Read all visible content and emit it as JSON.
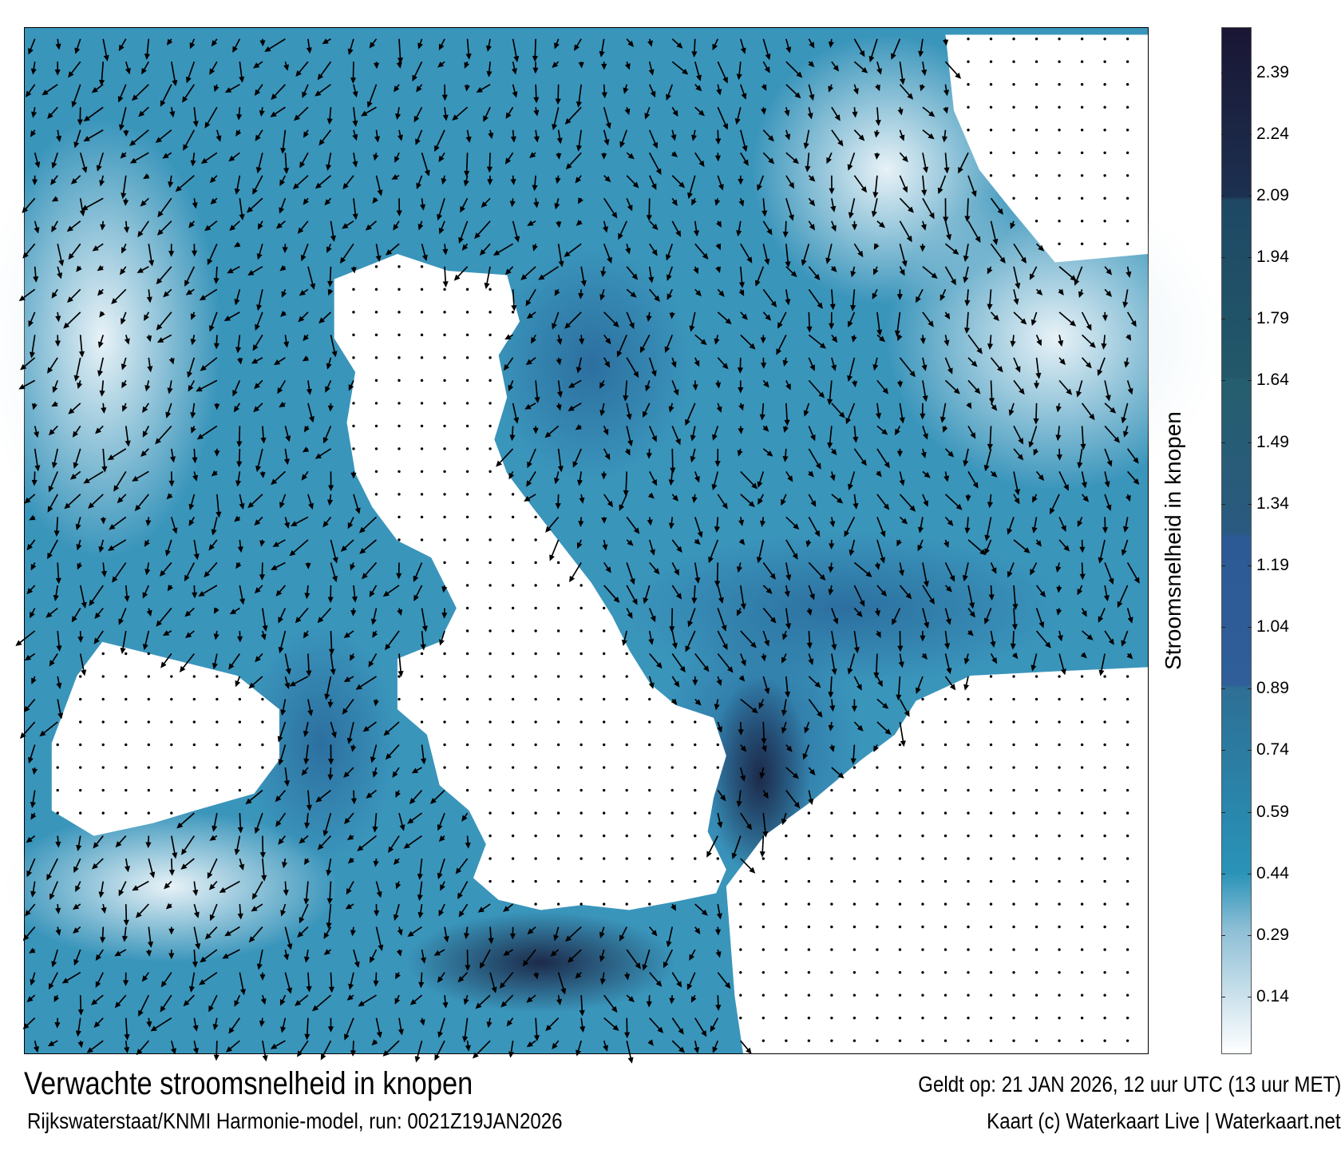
{
  "map": {
    "colorbar": {
      "label": "Stroomsnelheid in knopen",
      "ticks": [
        "0.14",
        "0.29",
        "0.44",
        "0.59",
        "0.74",
        "0.89",
        "1.04",
        "1.19",
        "1.34",
        "1.49",
        "1.64",
        "1.79",
        "1.94",
        "2.09",
        "2.24",
        "2.39"
      ],
      "range": [
        0,
        2.5
      ],
      "colors": {
        "0": "#ffffff",
        "0.3": "#8fbfd6",
        "0.44": "#2a93b8",
        "0.6": "#2a86ab",
        "0.89": "#2e6f95",
        "0.9": "#2f5e98",
        "1.26": "#2c5a94",
        "1.27": "#2a5a80",
        "1.64": "#255e6e",
        "1.65": "#22586a",
        "2.08": "#1e4864",
        "2.09": "#1c3050",
        "2.5": "#1a1634"
      }
    },
    "land_color": "#ffffff",
    "water_color": "#3a95bb"
  },
  "footer": {
    "title": "Verwachte stroomsnelheid in knopen",
    "valid": "Geldt op: 21 JAN 2026, 12 uur UTC (13 uur MET)",
    "source": "Rijkswaterstaat/KNMI Harmonie-model, run: 0021Z19JAN2026",
    "credit": "Kaart (c) Waterkaart Live | Waterkaart.net"
  }
}
